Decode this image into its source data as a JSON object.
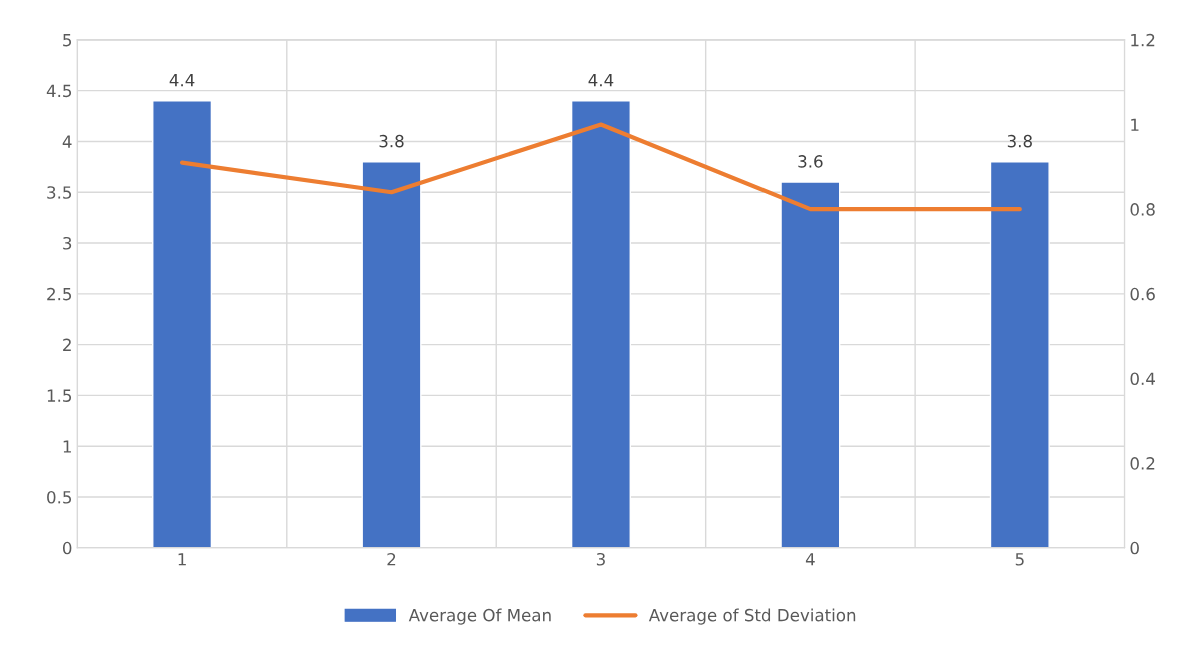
{
  "chart_data": {
    "type": "bar",
    "categories": [
      "1",
      "2",
      "3",
      "4",
      "5"
    ],
    "series": [
      {
        "name": "Average Of Mean",
        "color": "#4472c4",
        "values": [
          4.4,
          3.8,
          4.4,
          3.6,
          3.8
        ],
        "value_labels": [
          "4.4",
          "3.8",
          "4.4",
          "3.6",
          "3.8"
        ]
      },
      {
        "name": "Average of Std Deviation",
        "type": "line",
        "axis": "y2",
        "color": "#ed7d31",
        "values": [
          0.91,
          0.84,
          1.0,
          0.8,
          0.8
        ]
      }
    ],
    "ylim": [
      0,
      5
    ],
    "yticks": [
      0,
      0.5,
      1,
      1.5,
      2,
      2.5,
      3,
      3.5,
      4,
      4.5,
      5
    ],
    "y2lim": [
      0,
      1.2
    ],
    "y2ticks": [
      0,
      0.2,
      0.4,
      0.6,
      0.8,
      1,
      1.2
    ],
    "grid": true,
    "legend": "bottom",
    "marker": "none",
    "line_style": "solid"
  }
}
